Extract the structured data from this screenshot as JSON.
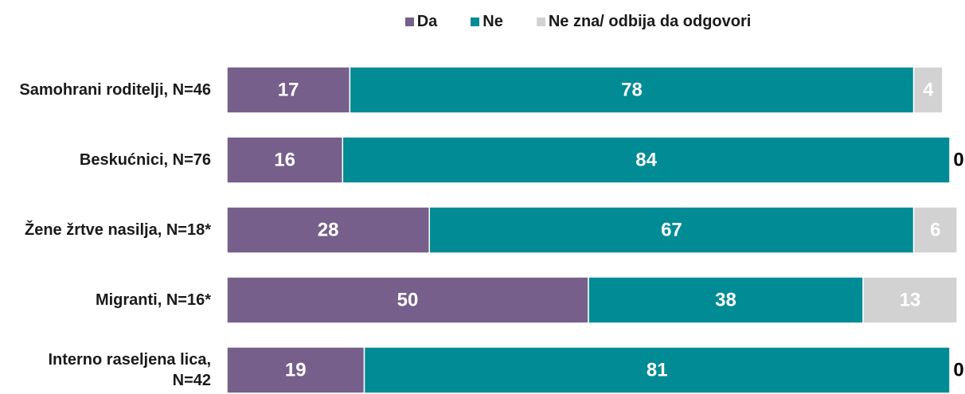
{
  "chart_data": {
    "type": "stacked_bar_horizontal",
    "categories": [
      "Samohrani roditelji, N=46",
      "Beskućnici, N=76",
      "Žene žrtve nasilja, N=18*",
      "Migranti, N=16*",
      "Interno raseljena lica, N=42"
    ],
    "series": [
      {
        "name": "Da",
        "color": "#765f8b",
        "values": [
          17,
          16,
          28,
          50,
          19
        ]
      },
      {
        "name": "Ne",
        "color": "#008b95",
        "values": [
          78,
          84,
          67,
          38,
          81
        ]
      },
      {
        "name": "Ne zna/ odbija da odgovori",
        "color": "#d2d2d2",
        "values": [
          4,
          0,
          6,
          13,
          0
        ]
      }
    ],
    "xlim": [
      0,
      100
    ]
  }
}
